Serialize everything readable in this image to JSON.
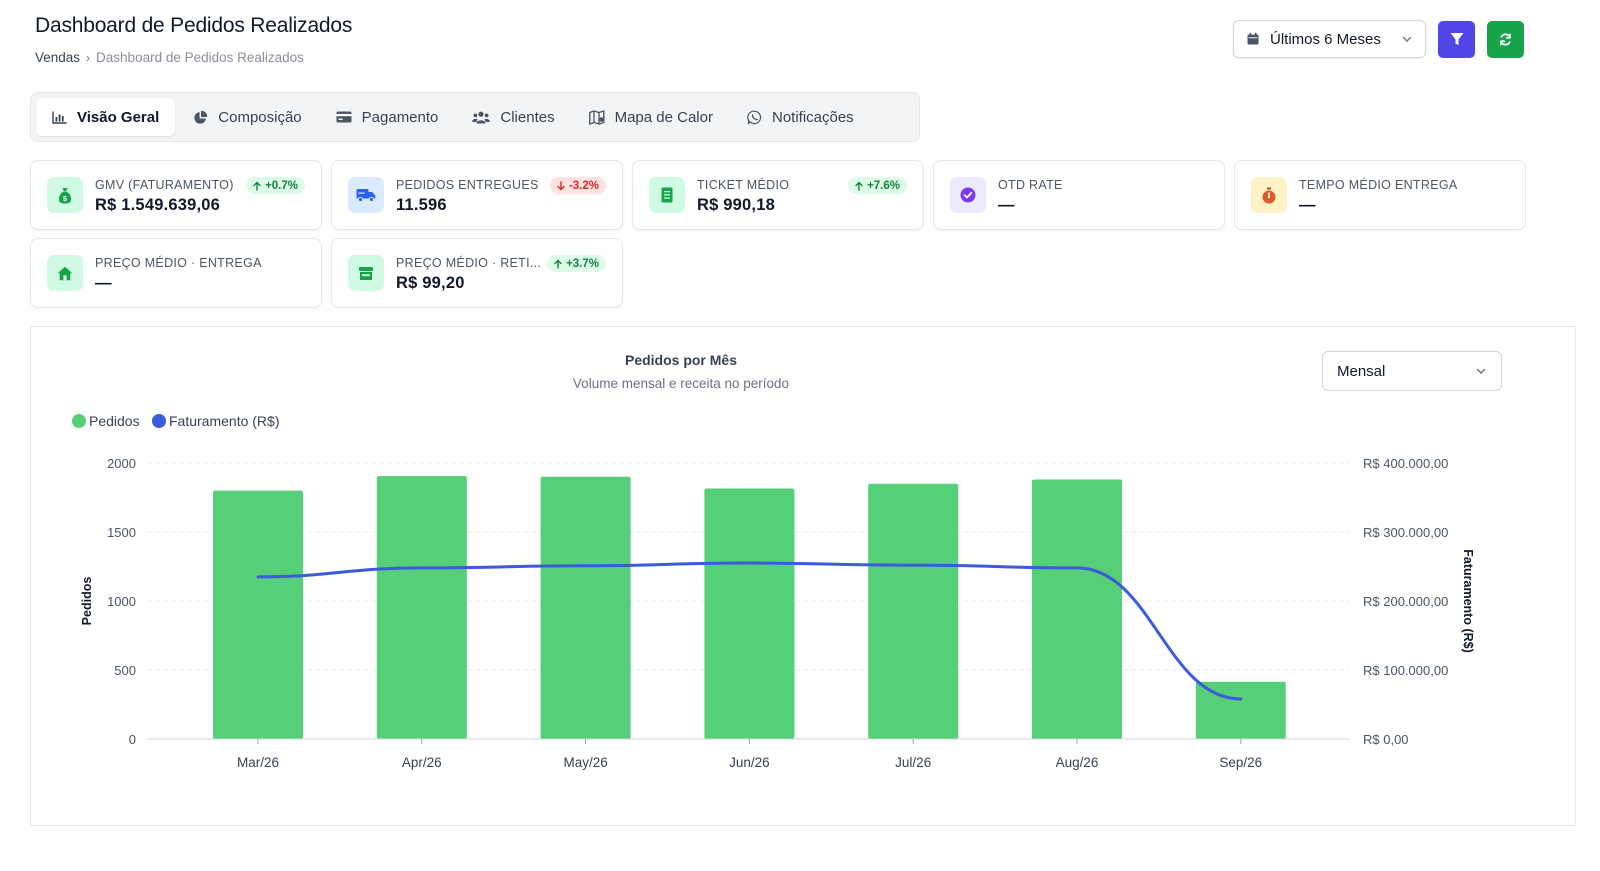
{
  "header": {
    "title": "Dashboard de Pedidos Realizados",
    "breadcrumb": [
      "Vendas",
      "Dashboard de Pedidos Realizados"
    ],
    "breadcrumb_sep": "›"
  },
  "actions": {
    "period": "Últimos 6 Meses"
  },
  "tabs": [
    {
      "label": "Visão Geral",
      "icon": "bar-chart-icon",
      "active": true
    },
    {
      "label": "Composição",
      "icon": "pie-chart-icon",
      "active": false
    },
    {
      "label": "Pagamento",
      "icon": "credit-card-icon",
      "active": false
    },
    {
      "label": "Clientes",
      "icon": "users-icon",
      "active": false
    },
    {
      "label": "Mapa de Calor",
      "icon": "map-icon",
      "active": false
    },
    {
      "label": "Notificações",
      "icon": "whatsapp-icon",
      "active": false
    }
  ],
  "kpis": [
    {
      "label": "GMV (FATURAMENTO)",
      "value": "R$ 1.549.639,06",
      "badge": "+0.7%",
      "trend": "up",
      "icon": "money-bag-icon"
    },
    {
      "label": "PEDIDOS ENTREGUES",
      "value": "11.596",
      "badge": "-3.2%",
      "trend": "down",
      "icon": "truck-icon"
    },
    {
      "label": "TICKET MÉDIO",
      "value": "R$ 990,18",
      "badge": "+7.6%",
      "trend": "up",
      "icon": "receipt-icon"
    },
    {
      "label": "OTD RATE",
      "value": "—",
      "badge": "",
      "trend": "",
      "icon": "check-circle-icon"
    },
    {
      "label": "TEMPO MÉDIO ENTREGA",
      "value": "—",
      "badge": "",
      "trend": "",
      "icon": "stopwatch-icon"
    },
    {
      "label": "PREÇO MÉDIO · ENTREGA",
      "value": "—",
      "badge": "",
      "trend": "",
      "icon": "house-icon"
    },
    {
      "label": "PREÇO MÉDIO · RETI...",
      "value": "R$ 99,20",
      "badge": "+3.7%",
      "trend": "up",
      "icon": "store-icon"
    }
  ],
  "colors": {
    "bar": "#55cf78",
    "line": "#3b5bdb",
    "accent_indigo": "#4f46e5",
    "accent_green": "#16a34a"
  },
  "chart_select": "Mensal",
  "chart_data": {
    "type": "bar",
    "title": "Pedidos por Mês",
    "subtitle": "Volume mensal e receita no período",
    "categories": [
      "Mar/26",
      "Apr/26",
      "May/26",
      "Jun/26",
      "Jul/26",
      "Aug/26",
      "Sep/26"
    ],
    "series": [
      {
        "name": "Pedidos",
        "type": "bar",
        "axis": "left",
        "values": [
          1800,
          1905,
          1900,
          1815,
          1850,
          1880,
          415
        ]
      },
      {
        "name": "Faturamento (R$)",
        "type": "line",
        "axis": "right",
        "values": [
          235000,
          248000,
          251000,
          255000,
          252000,
          248000,
          58000
        ]
      }
    ],
    "ylabel": "Pedidos",
    "ylabel_right": "Faturamento (R$)",
    "ylim": [
      0,
      2000
    ],
    "ylim_right": [
      0,
      400000
    ],
    "yticks": [
      "0",
      "500",
      "1000",
      "1500",
      "2000"
    ],
    "yticks_right": [
      "R$ 0,00",
      "R$ 100.000,00",
      "R$ 200.000,00",
      "R$ 300.000,00",
      "R$ 400.000,00"
    ],
    "grid": true,
    "legend": "top-left"
  }
}
